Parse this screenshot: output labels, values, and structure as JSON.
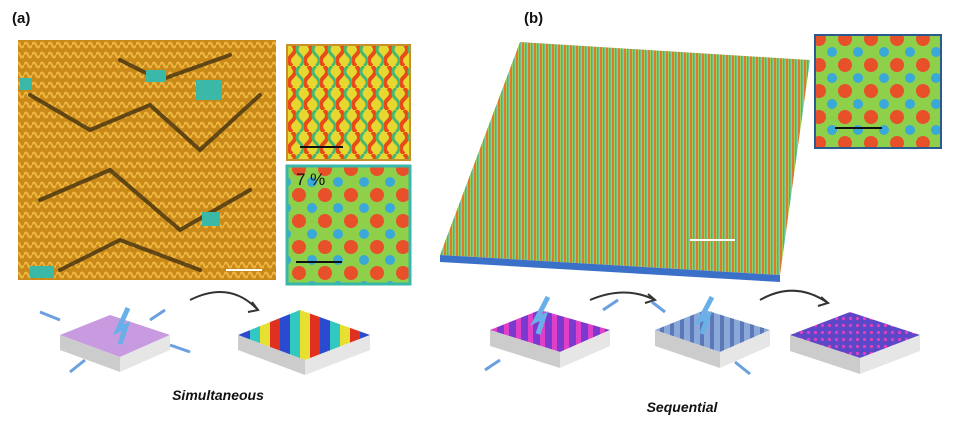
{
  "panels": [
    {
      "label": "(a)",
      "inset_label": "7 %",
      "caption": "Simultaneous"
    },
    {
      "label": "(b)",
      "caption": "Sequential"
    }
  ]
}
